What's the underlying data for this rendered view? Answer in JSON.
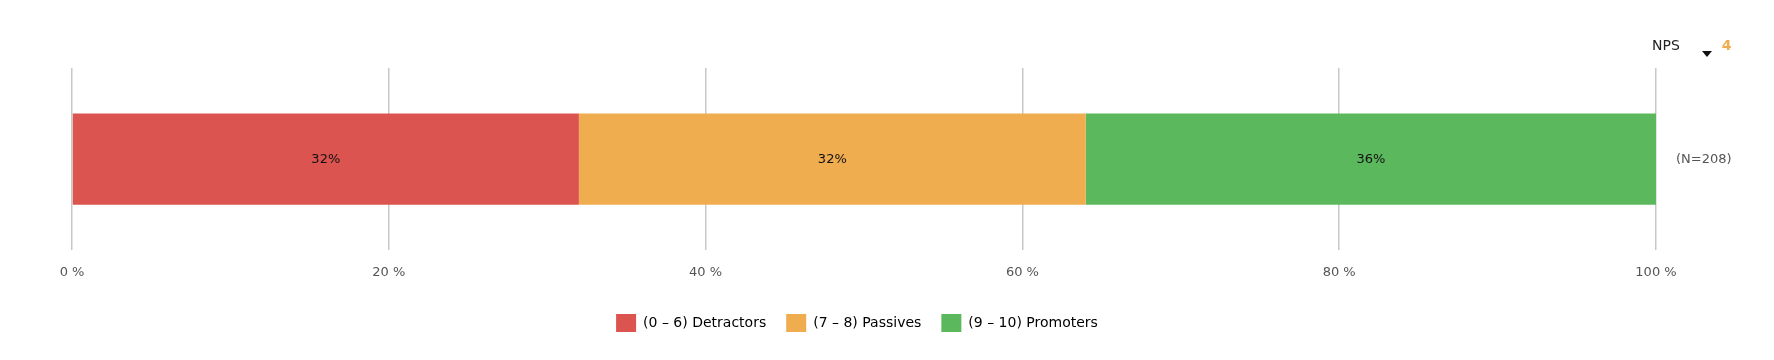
{
  "chart_data": {
    "type": "bar",
    "orientation": "horizontal",
    "stacked": true,
    "categories": [
      null
    ],
    "series": [
      {
        "name": "(0 – 6) Detractors",
        "color": "#db5450",
        "values": [
          32
        ],
        "value_labels": [
          "32%"
        ]
      },
      {
        "name": "(7 – 8) Passives",
        "color": "#efad4f",
        "values": [
          32
        ],
        "value_labels": [
          "32%"
        ]
      },
      {
        "name": "(9 – 10) Promoters",
        "color": "#5cb85c",
        "values": [
          36
        ],
        "value_labels": [
          "36%"
        ]
      }
    ],
    "xlim": [
      0,
      100
    ],
    "xticks": [
      {
        "value": 0,
        "label": "0 %"
      },
      {
        "value": 20,
        "label": "20 %"
      },
      {
        "value": 40,
        "label": "40 %"
      },
      {
        "value": 60,
        "label": "60 %"
      },
      {
        "value": 80,
        "label": "80 %"
      },
      {
        "value": 100,
        "label": "100 %"
      }
    ],
    "grid": "x",
    "legend": "bottom",
    "annotations": [
      "NPS",
      "4",
      "(N=208)"
    ]
  }
}
